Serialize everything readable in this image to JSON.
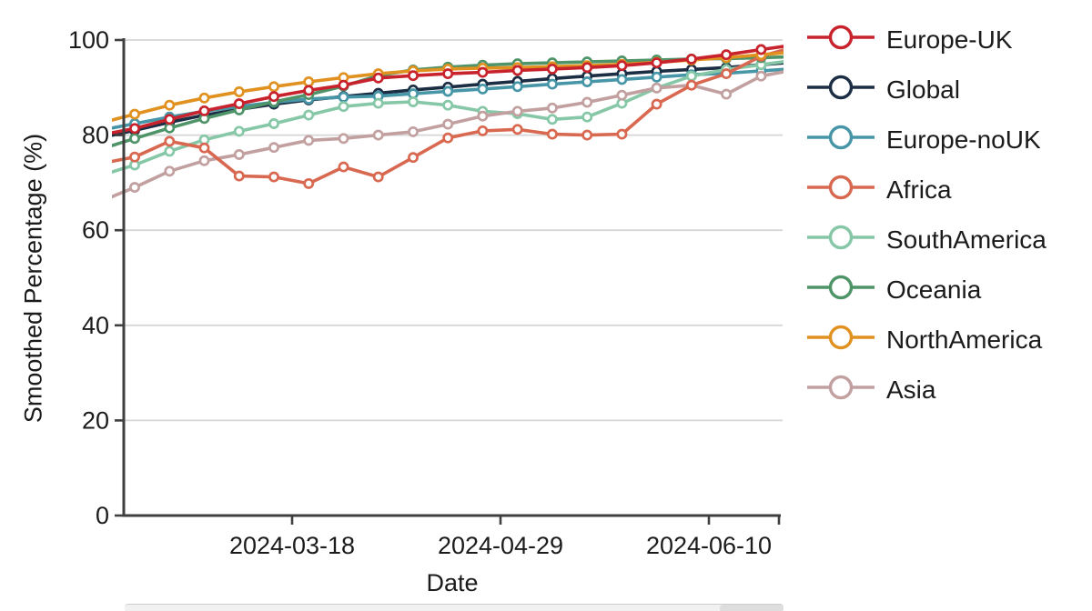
{
  "page": {
    "background": "#ffffff"
  },
  "chart_data": {
    "type": "line",
    "title": "",
    "xlabel": "Date",
    "ylabel": "Smoothed Percentage (%)",
    "ylim": [
      0,
      100
    ],
    "yticks": [
      0,
      20,
      40,
      60,
      80,
      100
    ],
    "xtick_labels": [
      "2024-03-18",
      "2024-04-29",
      "2024-06-10"
    ],
    "grid": true,
    "legend_position": "right",
    "marker": "open-circle",
    "x": [
      "2024-02-08",
      "2024-02-15",
      "2024-02-22",
      "2024-02-29",
      "2024-03-07",
      "2024-03-14",
      "2024-03-21",
      "2024-03-28",
      "2024-04-04",
      "2024-04-11",
      "2024-04-18",
      "2024-04-25",
      "2024-05-02",
      "2024-05-09",
      "2024-05-16",
      "2024-05-23",
      "2024-05-30",
      "2024-06-06",
      "2024-06-13",
      "2024-06-20",
      "2024-06-27"
    ],
    "series": [
      {
        "name": "Europe-UK",
        "color": "#c8222c",
        "values": [
          80.0,
          81.4,
          83.3,
          85.1,
          86.6,
          88.1,
          89.4,
          90.5,
          92.0,
          92.5,
          92.9,
          93.2,
          93.6,
          93.9,
          94.2,
          94.6,
          95.2,
          96.0,
          96.9,
          98.0,
          99.0
        ]
      },
      {
        "name": "Global",
        "color": "#1c2e44",
        "values": [
          79.4,
          81.0,
          82.7,
          84.2,
          85.4,
          86.5,
          87.4,
          88.1,
          88.8,
          89.5,
          90.1,
          90.7,
          91.3,
          91.9,
          92.4,
          92.9,
          93.4,
          93.8,
          94.2,
          94.8,
          95.4
        ]
      },
      {
        "name": "Europe-noUK",
        "color": "#4796a8",
        "values": [
          81.0,
          82.4,
          83.8,
          85.0,
          86.0,
          86.9,
          87.6,
          88.0,
          88.2,
          88.7,
          89.2,
          89.7,
          90.2,
          90.7,
          91.2,
          91.7,
          92.2,
          92.7,
          93.0,
          93.5,
          94.0
        ]
      },
      {
        "name": "Africa",
        "color": "#d96850",
        "values": [
          74.0,
          75.4,
          78.7,
          77.3,
          71.4,
          71.2,
          69.8,
          73.3,
          71.2,
          75.3,
          79.4,
          80.9,
          81.2,
          80.2,
          80.0,
          80.2,
          86.5,
          90.5,
          92.9,
          96.6,
          98.6
        ]
      },
      {
        "name": "SouthAmerica",
        "color": "#85c7a6",
        "values": [
          71.5,
          73.7,
          76.6,
          79.0,
          80.8,
          82.4,
          84.2,
          86.0,
          86.7,
          87.0,
          86.3,
          85.0,
          84.5,
          83.3,
          83.8,
          86.7,
          89.9,
          92.4,
          93.8,
          94.8,
          95.8
        ]
      },
      {
        "name": "Oceania",
        "color": "#4f9469",
        "values": [
          77.0,
          79.3,
          81.5,
          83.5,
          85.3,
          87.0,
          88.5,
          90.3,
          92.5,
          93.7,
          94.3,
          94.7,
          95.0,
          95.2,
          95.4,
          95.6,
          95.8,
          96.0,
          96.1,
          96.3,
          96.5
        ]
      },
      {
        "name": "NorthAmerica",
        "color": "#e0911f",
        "values": [
          82.5,
          84.4,
          86.3,
          87.8,
          89.1,
          90.2,
          91.2,
          92.1,
          92.9,
          93.5,
          93.9,
          94.1,
          94.2,
          94.4,
          94.6,
          94.9,
          95.3,
          95.8,
          96.3,
          96.9,
          97.5
        ]
      },
      {
        "name": "Asia",
        "color": "#c2a0a0",
        "values": [
          66.0,
          69.0,
          72.4,
          74.6,
          75.9,
          77.4,
          78.9,
          79.3,
          80.0,
          80.7,
          82.3,
          84.0,
          85.0,
          85.7,
          86.9,
          88.4,
          89.9,
          90.5,
          88.6,
          92.4,
          93.8
        ]
      }
    ],
    "axis_color": "#3f3f3f",
    "grid_color": "#d6d6d6"
  }
}
